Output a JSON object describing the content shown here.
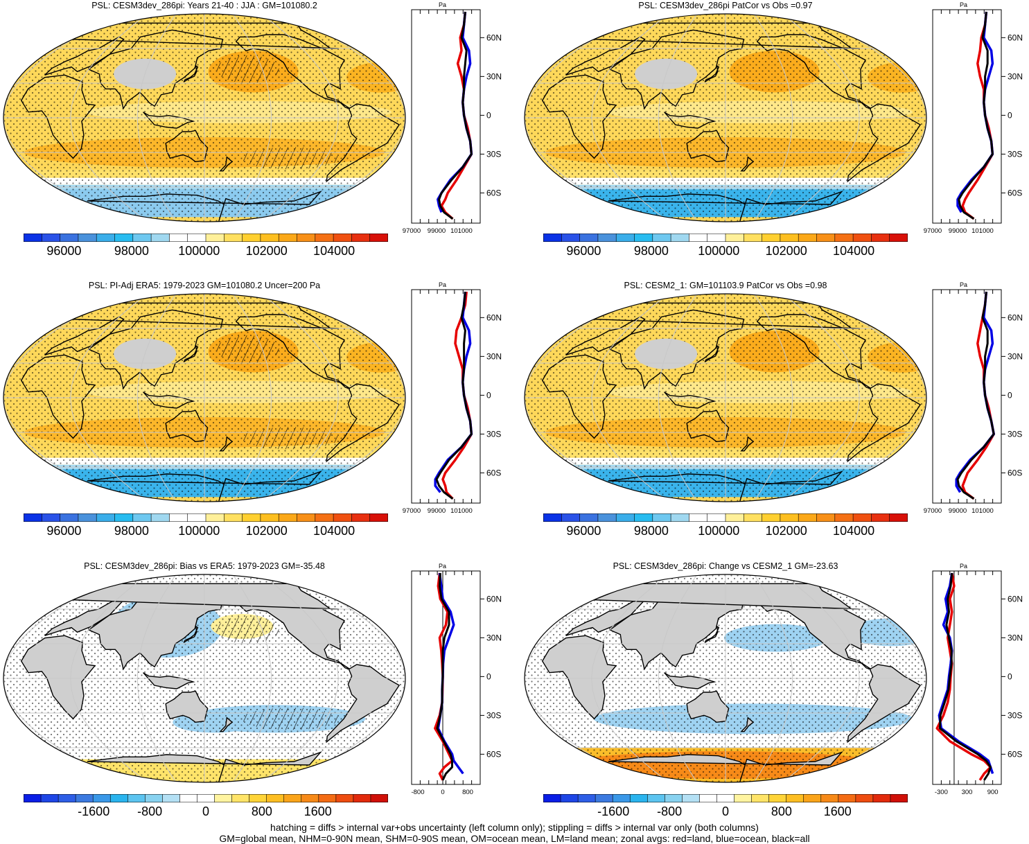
{
  "chart_data": [
    {
      "type": "heatmap",
      "title": "PSL: CESM3dev_286pi: Years 21-40 : JJA : GM=101080.2",
      "zonal_xticks": [
        "97000",
        "99000",
        "101000"
      ],
      "zonal_unit": "Pa",
      "lat_ticks": [
        "60N",
        "30N",
        "0",
        "30S",
        "60S"
      ],
      "colorbar_ticks": [
        "96000",
        "98000",
        "100000",
        "102000",
        "104000"
      ],
      "colorbar_range": [
        94800,
        105600
      ],
      "zonal_series": [
        {
          "name": "land",
          "color": "#e60000",
          "lat": [
            80,
            70,
            60,
            50,
            40,
            30,
            20,
            10,
            0,
            -10,
            -20,
            -30,
            -40,
            -50,
            -60,
            -65,
            -70,
            -75,
            -80
          ],
          "values": [
            101300,
            101200,
            100900,
            101000,
            100700,
            101000,
            101200,
            101100,
            101200,
            101500,
            101700,
            101800,
            101200,
            100600,
            99900,
            99700,
            99400,
            99700,
            100300
          ]
        },
        {
          "name": "ocean",
          "color": "#0000e6",
          "lat": [
            80,
            70,
            60,
            50,
            40,
            30,
            20,
            10,
            0,
            -10,
            -20,
            -30,
            -40,
            -50,
            -60,
            -65,
            -70,
            -75
          ],
          "values": [
            101300,
            101200,
            101100,
            101600,
            101700,
            101400,
            101200,
            101100,
            101200,
            101400,
            101700,
            101800,
            101100,
            100100,
            99400,
            99100,
            99200,
            99400
          ]
        },
        {
          "name": "all",
          "color": "#000000",
          "lat": [
            80,
            70,
            60,
            50,
            40,
            30,
            20,
            10,
            0,
            -10,
            -20,
            -30,
            -40,
            -50,
            -60,
            -65,
            -70,
            -75,
            -80
          ],
          "values": [
            101300,
            101200,
            101000,
            101400,
            101300,
            101200,
            101200,
            101100,
            101200,
            101400,
            101700,
            101800,
            101100,
            100200,
            99400,
            99200,
            99300,
            99600,
            100300
          ]
        }
      ]
    },
    {
      "type": "heatmap",
      "title": "PSL: CESM3dev_286pi PatCor vs Obs =0.97",
      "zonal_xticks": [
        "97000",
        "99000",
        "101000"
      ],
      "zonal_unit": "Pa",
      "lat_ticks": [
        "60N",
        "30N",
        "0",
        "30S",
        "60S"
      ],
      "colorbar_ticks": [
        "96000",
        "98000",
        "100000",
        "102000",
        "104000"
      ],
      "colorbar_range": [
        94800,
        105600
      ],
      "zonal_series": [
        {
          "name": "land",
          "color": "#e60000",
          "lat": [
            80,
            70,
            60,
            50,
            40,
            30,
            20,
            10,
            0,
            -10,
            -20,
            -30,
            -40,
            -50,
            -60,
            -65,
            -70,
            -75,
            -80
          ],
          "values": [
            101300,
            101200,
            100900,
            100800,
            100600,
            100800,
            101100,
            101100,
            101200,
            101500,
            101700,
            101800,
            101200,
            100600,
            99900,
            99600,
            99400,
            99600,
            100300
          ]
        },
        {
          "name": "ocean",
          "color": "#0000e6",
          "lat": [
            80,
            70,
            60,
            50,
            40,
            30,
            20,
            10,
            0,
            -10,
            -20,
            -30,
            -40,
            -50,
            -60,
            -65,
            -70,
            -75
          ],
          "values": [
            101300,
            101200,
            101100,
            101700,
            101800,
            101500,
            101200,
            101100,
            101200,
            101400,
            101700,
            101800,
            101100,
            100100,
            99300,
            99000,
            99000,
            99300
          ]
        },
        {
          "name": "all",
          "color": "#000000",
          "lat": [
            80,
            70,
            60,
            50,
            40,
            30,
            20,
            10,
            0,
            -10,
            -20,
            -30,
            -40,
            -50,
            -60,
            -65,
            -70,
            -75,
            -80
          ],
          "values": [
            101300,
            101200,
            101000,
            101400,
            101400,
            101200,
            101200,
            101100,
            101200,
            101400,
            101700,
            101800,
            101100,
            100200,
            99400,
            99100,
            99200,
            99500,
            100300
          ]
        }
      ]
    },
    {
      "type": "heatmap",
      "title": "PSL: PI-Adj ERA5: 1979-2023 GM=101080.2 Uncer=200 Pa",
      "zonal_xticks": [
        "97000",
        "99000",
        "101000"
      ],
      "zonal_unit": "Pa",
      "lat_ticks": [
        "60N",
        "30N",
        "0",
        "30S",
        "60S"
      ],
      "colorbar_ticks": [
        "96000",
        "98000",
        "100000",
        "102000",
        "104000"
      ],
      "colorbar_range": [
        94800,
        105600
      ],
      "zonal_series": [
        {
          "name": "land",
          "color": "#e60000",
          "lat": [
            80,
            70,
            60,
            50,
            40,
            30,
            20,
            10,
            0,
            -10,
            -20,
            -30,
            -40,
            -50,
            -60,
            -65,
            -70,
            -75,
            -80
          ],
          "values": [
            101400,
            101300,
            101000,
            100600,
            100500,
            100800,
            101100,
            101100,
            101200,
            101500,
            101700,
            101800,
            101200,
            100500,
            99700,
            99500,
            99700,
            99800,
            100300
          ]
        },
        {
          "name": "ocean",
          "color": "#0000e6",
          "lat": [
            80,
            70,
            60,
            50,
            40,
            30,
            20,
            10,
            0,
            -10,
            -20,
            -30,
            -40,
            -50,
            -60,
            -65,
            -70,
            -75
          ],
          "values": [
            101300,
            101200,
            101100,
            101600,
            101700,
            101400,
            101200,
            101100,
            101200,
            101400,
            101700,
            101800,
            101000,
            99900,
            99200,
            98900,
            98900,
            99300
          ]
        },
        {
          "name": "all",
          "color": "#000000",
          "lat": [
            80,
            70,
            60,
            50,
            40,
            30,
            20,
            10,
            0,
            -10,
            -20,
            -30,
            -40,
            -50,
            -60,
            -65,
            -70,
            -75,
            -80
          ],
          "values": [
            101300,
            101200,
            101000,
            101300,
            101200,
            101200,
            101200,
            101100,
            101200,
            101400,
            101700,
            101800,
            101000,
            100000,
            99300,
            99000,
            99200,
            99600,
            100300
          ]
        }
      ]
    },
    {
      "type": "heatmap",
      "title": "PSL: CESM2_1: GM=101103.9 PatCor vs Obs =0.98",
      "zonal_xticks": [
        "97000",
        "99000",
        "101000"
      ],
      "zonal_unit": "Pa",
      "lat_ticks": [
        "60N",
        "30N",
        "0",
        "30S",
        "60S"
      ],
      "colorbar_ticks": [
        "96000",
        "98000",
        "100000",
        "102000",
        "104000"
      ],
      "colorbar_range": [
        94800,
        105600
      ],
      "zonal_series": [
        {
          "name": "land",
          "color": "#e60000",
          "lat": [
            80,
            70,
            60,
            50,
            40,
            30,
            20,
            10,
            0,
            -10,
            -20,
            -30,
            -40,
            -50,
            -60,
            -65,
            -70,
            -75,
            -80
          ],
          "values": [
            101300,
            101200,
            101000,
            100800,
            100600,
            100800,
            101100,
            101100,
            101200,
            101500,
            101700,
            101900,
            101300,
            100600,
            99800,
            99600,
            99400,
            99600,
            100300
          ]
        },
        {
          "name": "ocean",
          "color": "#0000e6",
          "lat": [
            80,
            70,
            60,
            50,
            40,
            30,
            20,
            10,
            0,
            -10,
            -20,
            -30,
            -40,
            -50,
            -60,
            -65,
            -70,
            -75
          ],
          "values": [
            101300,
            101200,
            101100,
            101700,
            101800,
            101500,
            101200,
            101100,
            101200,
            101400,
            101700,
            101900,
            101100,
            100000,
            99200,
            98900,
            98900,
            99200
          ]
        },
        {
          "name": "all",
          "color": "#000000",
          "lat": [
            80,
            70,
            60,
            50,
            40,
            30,
            20,
            10,
            0,
            -10,
            -20,
            -30,
            -40,
            -50,
            -60,
            -65,
            -70,
            -75,
            -80
          ],
          "values": [
            101300,
            101200,
            101000,
            101400,
            101400,
            101200,
            101200,
            101100,
            101200,
            101400,
            101700,
            101900,
            101100,
            100100,
            99300,
            99000,
            99100,
            99500,
            100300
          ]
        }
      ]
    },
    {
      "type": "heatmap",
      "title": "PSL: CESM3dev_286pi: Bias vs ERA5: 1979-2023 GM=-35.48",
      "zonal_xticks": [
        "-800",
        "0",
        "800"
      ],
      "zonal_unit": "Pa",
      "lat_ticks": [
        "60N",
        "30N",
        "0",
        "30S",
        "60S"
      ],
      "colorbar_ticks": [
        "-1600",
        "-800",
        "0",
        "800",
        "1600"
      ],
      "colorbar_range": [
        -2600,
        2600
      ],
      "zonal_series": [
        {
          "name": "land",
          "color": "#e60000",
          "lat": [
            80,
            70,
            60,
            50,
            40,
            30,
            20,
            10,
            0,
            -10,
            -20,
            -30,
            -40,
            -50,
            -60,
            -65,
            -70,
            -75,
            -80
          ],
          "values": [
            -100,
            -150,
            -80,
            150,
            100,
            -100,
            -50,
            -20,
            0,
            -10,
            -20,
            -100,
            -250,
            0,
            200,
            300,
            50,
            -100,
            0
          ]
        },
        {
          "name": "ocean",
          "color": "#0000e6",
          "lat": [
            80,
            70,
            60,
            50,
            40,
            30,
            20,
            10,
            0,
            -10,
            -20,
            -30,
            -40,
            -50,
            -60,
            -65,
            -70,
            -75
          ],
          "values": [
            -100,
            -50,
            0,
            250,
            350,
            200,
            50,
            10,
            0,
            -20,
            -20,
            -80,
            -150,
            50,
            300,
            350,
            500,
            650
          ]
        },
        {
          "name": "all",
          "color": "#000000",
          "lat": [
            80,
            70,
            60,
            50,
            40,
            30,
            20,
            10,
            0,
            -10,
            -20,
            -30,
            -40,
            -50,
            -60,
            -65,
            -70,
            -75,
            -80
          ],
          "values": [
            -80,
            -100,
            -40,
            200,
            200,
            50,
            0,
            0,
            0,
            -20,
            -20,
            -80,
            -180,
            30,
            250,
            300,
            300,
            100,
            0
          ]
        }
      ]
    },
    {
      "type": "heatmap",
      "title": "PSL: CESM3dev_286pi: Change vs CESM2_1 GM=-23.63",
      "zonal_xticks": [
        "-300",
        "300",
        "900"
      ],
      "zonal_unit": "Pa",
      "lat_ticks": [
        "60N",
        "30N",
        "0",
        "30S",
        "60S"
      ],
      "colorbar_ticks": [
        "-1600",
        "-800",
        "0",
        "800",
        "1600"
      ],
      "colorbar_range": [
        -2600,
        2600
      ],
      "zonal_series": [
        {
          "name": "land",
          "color": "#e60000",
          "lat": [
            80,
            70,
            60,
            50,
            40,
            30,
            20,
            10,
            0,
            -10,
            -20,
            -30,
            -40,
            -50,
            -60,
            -65,
            -70,
            -75,
            -80
          ],
          "values": [
            -50,
            0,
            -100,
            -50,
            -100,
            -150,
            -100,
            -50,
            -80,
            -100,
            -150,
            -250,
            -400,
            -100,
            400,
            700,
            850,
            700,
            600
          ]
        },
        {
          "name": "ocean",
          "color": "#0000e6",
          "lat": [
            80,
            70,
            60,
            50,
            40,
            30,
            20,
            10,
            0,
            -10,
            -20,
            -30,
            -40,
            -50,
            -60,
            -65,
            -70,
            -75
          ],
          "values": [
            -50,
            -100,
            -200,
            -150,
            -250,
            -100,
            -50,
            -80,
            -120,
            -150,
            -250,
            -350,
            -300,
            100,
            600,
            800,
            850,
            900
          ]
        },
        {
          "name": "all",
          "color": "#000000",
          "lat": [
            80,
            70,
            60,
            50,
            40,
            30,
            20,
            10,
            0,
            -10,
            -20,
            -30,
            -40,
            -50,
            -60,
            -65,
            -70,
            -75,
            -80
          ],
          "values": [
            -50,
            -80,
            -150,
            -120,
            -180,
            -120,
            -60,
            -60,
            -100,
            -130,
            -220,
            -320,
            -330,
            50,
            550,
            750,
            850,
            800,
            700
          ]
        }
      ]
    }
  ],
  "footnote": {
    "line1": "hatching = diffs > internal var+obs uncertainty (left column only); stippling = diffs > internal var only (both columns)",
    "line2": "GM=global mean, NHM=0-90N mean, SHM=0-90S mean, OM=ocean mean, LM=land mean; zonal avgs: red=land, blue=ocean, black=all"
  },
  "colors": {
    "abs_palette": [
      "#0a32e6",
      "#2a52e8",
      "#3a72e0",
      "#4a92dc",
      "#3aaeea",
      "#28bcf0",
      "#6ec8f0",
      "#a0d8f0",
      "#ffffff",
      "#ffffff",
      "#fff09a",
      "#ffe060",
      "#ffd030",
      "#fdbf20",
      "#fba818",
      "#f89018",
      "#f57014",
      "#f05010",
      "#e83010",
      "#d81008"
    ],
    "land_gray": "#cfcfcf"
  }
}
